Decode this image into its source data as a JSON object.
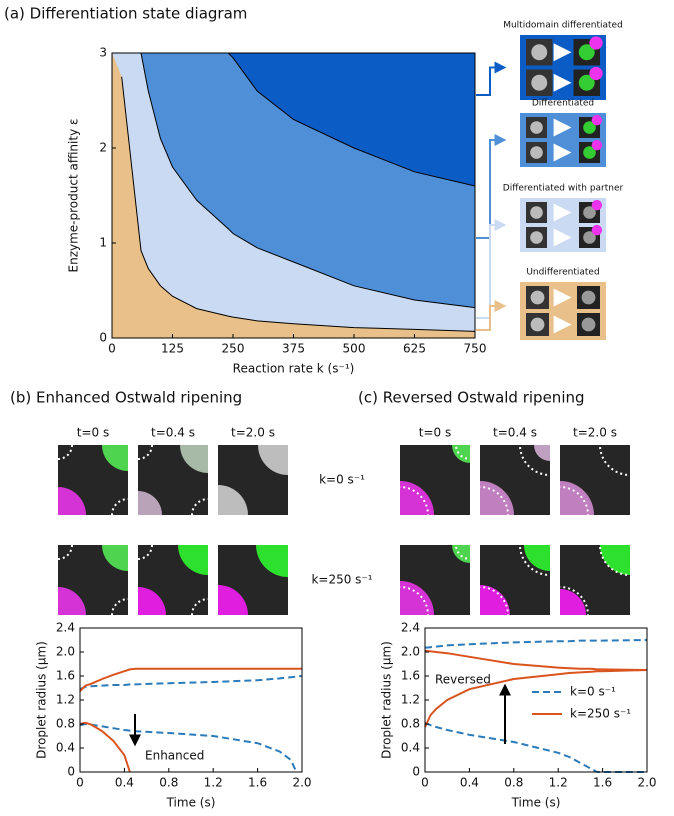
{
  "chart_data": [
    {
      "type": "region",
      "title": "(a) Differentiation state diagram",
      "xlabel": "Reaction rate k (s⁻¹)",
      "ylabel": "Enzyme-product affinity ε",
      "xlim": [
        0,
        750
      ],
      "ylim": [
        0,
        3
      ],
      "xticks": [
        0,
        125,
        250,
        375,
        500,
        625,
        750
      ],
      "yticks": [
        0,
        1,
        2,
        3
      ],
      "x": [
        20,
        60,
        75,
        100,
        125,
        175,
        240,
        250,
        300,
        375,
        500,
        625,
        750
      ],
      "regions": [
        {
          "name": "Multidomain differentiated",
          "color": "#0b5cc4"
        },
        {
          "name": "Differentiated",
          "color": "#4f8fd8"
        },
        {
          "name": "Differentiated with partner",
          "color": "#c9daf2"
        },
        {
          "name": "Undifferentiated",
          "color": "#e9c089"
        }
      ],
      "series": [
        {
          "color": "#000000",
          "values": [
            null,
            null,
            null,
            null,
            null,
            null,
            3.0,
            2.95,
            2.6,
            2.3,
            2.0,
            1.75,
            1.6
          ]
        },
        {
          "color": "#000000",
          "values": [
            null,
            3.0,
            2.6,
            2.1,
            1.8,
            1.45,
            1.15,
            1.1,
            0.95,
            0.8,
            0.55,
            0.4,
            0.32
          ]
        },
        {
          "color": "#000000",
          "values": [
            2.75,
            0.92,
            0.73,
            0.55,
            0.44,
            0.31,
            0.23,
            0.22,
            0.18,
            0.15,
            0.11,
            0.09,
            0.07
          ]
        }
      ]
    },
    {
      "type": "line",
      "title": "(b) Enhanced Ostwald ripening",
      "snapshot_times": [
        "t=0 s",
        "t=0.4 s",
        "t=2.0 s"
      ],
      "snapshot_rows": [
        "k=0 s⁻¹",
        "k=250 s⁻¹"
      ],
      "xlabel": "Time (s)",
      "ylabel": "Droplet radius (μm)",
      "xlim": [
        0,
        2
      ],
      "ylim": [
        0,
        2.4
      ],
      "xticks": [
        0,
        0.4,
        0.8,
        1.2,
        1.6,
        {
          "value": 2,
          "label": "2.0"
        }
      ],
      "yticks": [
        0,
        0.4,
        0.8,
        1.2,
        1.6,
        {
          "value": 2,
          "label": "2.0"
        },
        2.4
      ],
      "x": [
        0,
        0.05,
        0.1,
        0.2,
        0.3,
        0.4,
        0.45,
        0.5,
        0.8,
        1.2,
        1.6,
        1.8,
        1.9,
        1.95,
        2.0
      ],
      "series": [
        {
          "color": "#2b7bba",
          "style": "dashed",
          "values": [
            1.38,
            1.42,
            1.43,
            1.44,
            1.45,
            1.45,
            1.46,
            1.46,
            1.48,
            1.5,
            1.53,
            1.56,
            1.58,
            1.59,
            1.6
          ]
        },
        {
          "color": "#2b7bba",
          "style": "dashed",
          "values": [
            0.78,
            0.8,
            0.79,
            0.76,
            0.73,
            0.7,
            0.69,
            0.68,
            0.65,
            0.6,
            0.48,
            0.34,
            0.2,
            0,
            null
          ]
        },
        {
          "color": "#d9541e",
          "style": "solid",
          "values": [
            1.35,
            1.44,
            1.47,
            1.55,
            1.62,
            1.68,
            1.71,
            1.72,
            1.72,
            1.72,
            1.72,
            1.72,
            1.72,
            1.72,
            1.72
          ]
        },
        {
          "color": "#d9541e",
          "style": "solid",
          "values": [
            0.8,
            0.82,
            0.79,
            0.68,
            0.52,
            0.28,
            0,
            null,
            null,
            null,
            null,
            null,
            null,
            null,
            null
          ]
        }
      ],
      "annotations": [
        {
          "text": "Enhanced",
          "color": "#d9541e"
        }
      ]
    },
    {
      "type": "line",
      "title": "(c) Reversed Ostwald ripening",
      "snapshot_times": [
        "t=0 s",
        "t=0.4 s",
        "t=2.0 s"
      ],
      "xlabel": "Time (s)",
      "ylabel": "Droplet radius (μm)",
      "xlim": [
        0,
        2
      ],
      "ylim": [
        0,
        2.4
      ],
      "xticks": [
        0,
        0.4,
        0.8,
        1.2,
        1.6,
        {
          "value": 2,
          "label": "2.0"
        }
      ],
      "yticks": [
        0,
        0.4,
        0.8,
        1.2,
        1.6,
        {
          "value": 2,
          "label": "2.0"
        },
        2.4
      ],
      "x": [
        0,
        0.05,
        0.1,
        0.2,
        0.4,
        0.8,
        1.2,
        1.3,
        1.4,
        1.5,
        1.55,
        1.6,
        2.0
      ],
      "legend": "center right",
      "series": [
        {
          "name": "k=0 s⁻¹",
          "color": "#2b7bba",
          "style": "dashed",
          "values": [
            2.07,
            2.08,
            2.09,
            2.11,
            2.13,
            2.16,
            2.18,
            2.18,
            2.19,
            2.19,
            2.19,
            2.19,
            2.2
          ]
        },
        {
          "name": "k=250 s⁻¹",
          "color": "#d9541e",
          "style": "solid",
          "values": [
            2.02,
            2.01,
            2.0,
            1.98,
            1.92,
            1.8,
            1.74,
            1.73,
            1.72,
            1.72,
            1.71,
            1.71,
            1.7
          ]
        },
        {
          "color": "#2b7bba",
          "style": "dashed",
          "values": [
            0.82,
            0.78,
            0.75,
            0.7,
            0.62,
            0.5,
            0.32,
            0.25,
            0.15,
            0.05,
            0,
            0,
            0
          ]
        },
        {
          "color": "#d9541e",
          "style": "solid",
          "values": [
            0.75,
            0.95,
            1.05,
            1.2,
            1.38,
            1.55,
            1.63,
            1.65,
            1.66,
            1.67,
            1.68,
            1.68,
            1.7
          ]
        }
      ],
      "annotations": [
        {
          "text": "Reversed",
          "color": "#d9541e"
        }
      ]
    }
  ]
}
